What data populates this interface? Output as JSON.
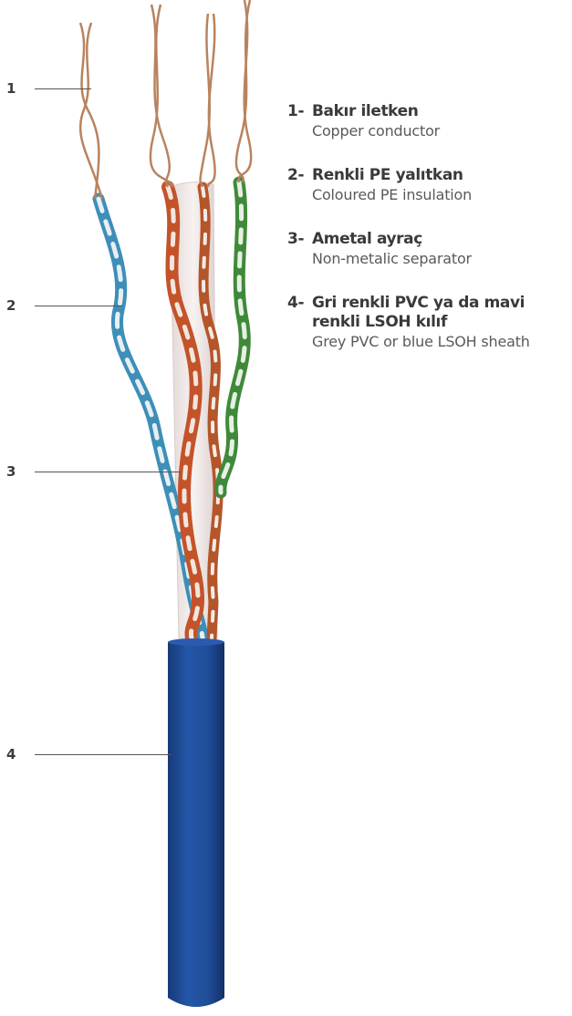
{
  "callouts": [
    {
      "number": "1",
      "tr": "Bakır iletken",
      "en": "Copper conductor"
    },
    {
      "number": "2",
      "tr": "Renkli PE yalıtkan",
      "en": "Coloured PE insulation"
    },
    {
      "number": "3",
      "tr": "Ametal ayraç",
      "en": "Non-metalic separator"
    },
    {
      "number": "4",
      "tr": "Gri renkli PVC ya da mavi renkli LSOH kılıf",
      "en": "Grey PVC or blue LSOH sheath"
    }
  ],
  "legend_suffix": "-",
  "colors": {
    "sheath": "#1f4e9a",
    "copper": "#b9835f",
    "pair_blue": "#3d8fb8",
    "pair_orange": "#c4532a",
    "pair_green": "#3f8a3a",
    "separator": "#efe8e6",
    "leader": "#555555"
  }
}
